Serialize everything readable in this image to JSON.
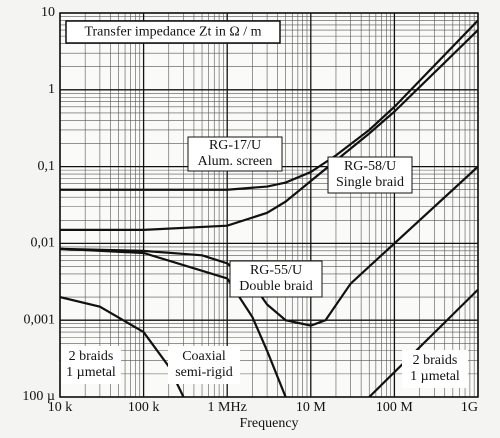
{
  "chart_data": {
    "type": "line",
    "title": "Transfer impedance Zt in Ω / m",
    "x_label": "Frequency",
    "log_x": true,
    "log_y": true,
    "grid": true,
    "xlim": [
      10000,
      1000000000
    ],
    "ylim": [
      0.0001,
      10
    ],
    "xticks": [
      {
        "value": 10000,
        "label": "10 k"
      },
      {
        "value": 100000,
        "label": "100 k"
      },
      {
        "value": 1000000,
        "label": "1 MHz"
      },
      {
        "value": 10000000,
        "label": "10 M"
      },
      {
        "value": 100000000,
        "label": "100 M"
      },
      {
        "value": 1000000000,
        "label": "1G"
      }
    ],
    "yticks": [
      10,
      1,
      {
        "value": 0.1,
        "label": "0,1"
      },
      {
        "value": 0.01,
        "label": "0,01"
      },
      {
        "value": 0.001,
        "label": "0,001"
      },
      {
        "value": 0.0001,
        "label": "100 µ"
      }
    ],
    "annotations": [
      [
        "RG-17/U",
        "Alum. screen"
      ],
      [
        "RG-58/U",
        "Single braid"
      ],
      [
        "RG-55/U",
        "Double braid"
      ],
      [
        "2 braids",
        "1 µmetal"
      ],
      [
        "Coaxial",
        "semi-rigid"
      ],
      [
        "2 braids",
        "1 µmetal"
      ]
    ],
    "series": [
      {
        "color": "#111111",
        "x": [
          10000,
          100000,
          1000000,
          3000000,
          5000000,
          10000000,
          20000000,
          50000000,
          100000000,
          1000000000
        ],
        "values": [
          0.05,
          0.05,
          0.05,
          0.055,
          0.062,
          0.085,
          0.14,
          0.3,
          0.6,
          8
        ]
      },
      {
        "color": "#111111",
        "x": [
          10000,
          100000,
          1000000,
          3000000,
          5000000,
          10000000,
          20000000,
          50000000,
          100000000,
          1000000000
        ],
        "values": [
          0.015,
          0.015,
          0.017,
          0.025,
          0.035,
          0.065,
          0.12,
          0.27,
          0.52,
          6
        ]
      },
      {
        "color": "#111111",
        "x": [
          10000,
          100000,
          500000,
          1000000,
          2000000,
          3000000,
          5000000,
          10000000,
          15000000,
          30000000,
          100000000,
          1000000000
        ],
        "values": [
          0.0085,
          0.008,
          0.007,
          0.0055,
          0.003,
          0.0016,
          0.001,
          0.00085,
          0.001,
          0.003,
          0.01,
          0.1
        ]
      },
      {
        "color": "#111111",
        "x": [
          10000,
          30000,
          100000,
          200000,
          300000
        ],
        "values": [
          0.002,
          0.0015,
          0.0007,
          0.00025,
          0.0001
        ]
      },
      {
        "color": "#111111",
        "x": [
          10000,
          100000,
          1000000,
          2000000,
          3000000,
          5000000
        ],
        "values": [
          0.0085,
          0.0075,
          0.0035,
          0.0011,
          0.0004,
          0.0001
        ]
      },
      {
        "color": "#111111",
        "x": [
          50000000,
          1000000000
        ],
        "values": [
          0.0001,
          0.0025
        ]
      }
    ]
  }
}
